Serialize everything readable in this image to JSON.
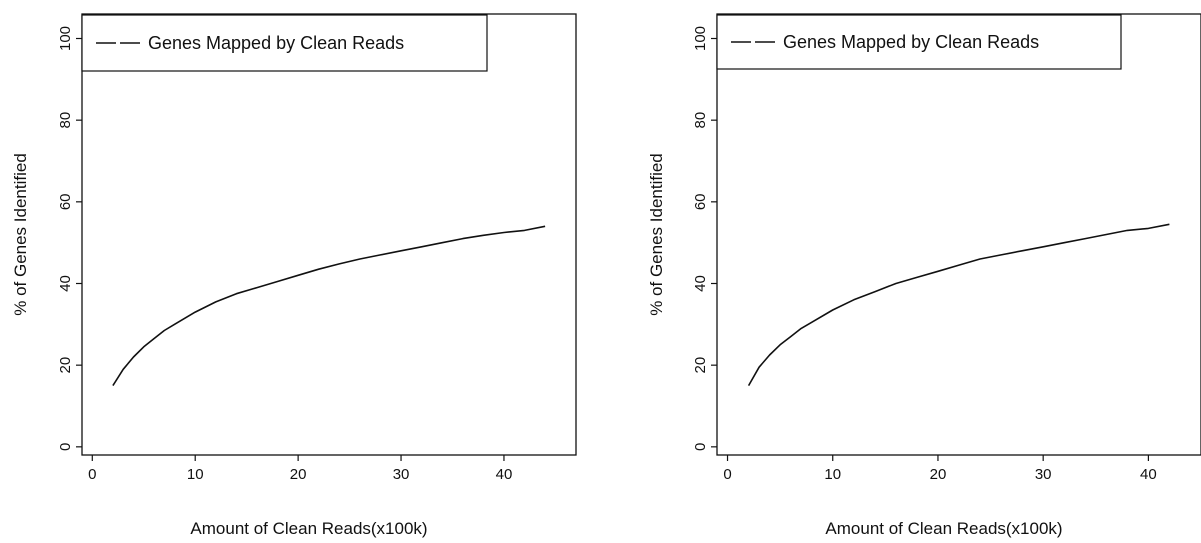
{
  "chart_data": [
    {
      "type": "line",
      "title": "",
      "xlabel": "Amount of Clean Reads(x100k)",
      "ylabel": "% of Genes Identified",
      "xlim": [
        -1,
        47
      ],
      "ylim": [
        -2,
        106
      ],
      "x_ticks": [
        "0",
        "10",
        "20",
        "30",
        "40"
      ],
      "y_ticks": [
        "0",
        "20",
        "40",
        "60",
        "80",
        "100"
      ],
      "grid": false,
      "legend": "top-left",
      "series": [
        {
          "name": "Genes Mapped by Clean Reads",
          "x": [
            2,
            3,
            4,
            5,
            6,
            7,
            8,
            10,
            12,
            14,
            16,
            18,
            20,
            22,
            24,
            26,
            28,
            30,
            32,
            34,
            36,
            38,
            40,
            42,
            44
          ],
          "y": [
            15,
            19,
            22,
            24.5,
            26.5,
            28.5,
            30,
            33,
            35.5,
            37.5,
            39,
            40.5,
            42,
            43.5,
            44.8,
            46,
            47,
            48,
            49,
            50,
            51,
            51.8,
            52.5,
            53,
            54
          ]
        }
      ]
    },
    {
      "type": "line",
      "title": "",
      "xlabel": "Amount of Clean Reads(x100k)",
      "ylabel": "% of Genes Identified",
      "xlim": [
        -1,
        45
      ],
      "ylim": [
        -2,
        106
      ],
      "x_ticks": [
        "0",
        "10",
        "20",
        "30",
        "40"
      ],
      "y_ticks": [
        "0",
        "20",
        "40",
        "60",
        "80",
        "100"
      ],
      "grid": false,
      "legend": "top-left",
      "series": [
        {
          "name": "Genes Mapped by Clean Reads",
          "x": [
            2,
            3,
            4,
            5,
            6,
            7,
            8,
            10,
            12,
            14,
            16,
            18,
            20,
            22,
            24,
            26,
            28,
            30,
            32,
            34,
            36,
            38,
            40,
            42
          ],
          "y": [
            15,
            19.5,
            22.5,
            25,
            27,
            29,
            30.5,
            33.5,
            36,
            38,
            40,
            41.5,
            43,
            44.5,
            46,
            47,
            48,
            49,
            50,
            51,
            52,
            53,
            53.5,
            54.5
          ]
        }
      ]
    }
  ]
}
